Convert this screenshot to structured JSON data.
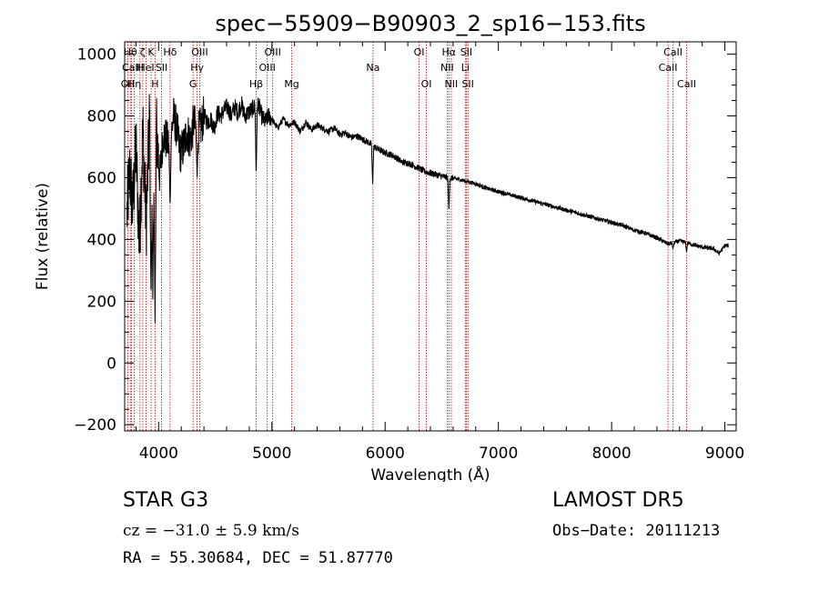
{
  "chart_data": {
    "type": "line",
    "title": "spec−55909−B90903_2_sp16−153.fits",
    "xlabel": "Wavelength (Å)",
    "ylabel": "Flux (relative)",
    "xlim": [
      3700,
      9100
    ],
    "ylim": [
      -220,
      1040
    ],
    "x_ticks": [
      4000,
      5000,
      6000,
      7000,
      8000,
      9000
    ],
    "y_ticks": [
      -200,
      0,
      200,
      400,
      600,
      800,
      1000
    ],
    "x_tick_labels": [
      "4000",
      "5000",
      "6000",
      "7000",
      "8000",
      "9000"
    ],
    "y_tick_labels": [
      "−200",
      "0",
      "200",
      "400",
      "600",
      "800",
      "1000"
    ],
    "grid": false,
    "color": "#000000",
    "series": [
      {
        "x": [
          3720,
          3745,
          3770,
          3800,
          3830,
          3860,
          3890,
          3920,
          3950,
          3980,
          4010,
          4040,
          4070,
          4100,
          4130,
          4160,
          4190,
          4220,
          4250,
          4280,
          4310,
          4340,
          4370,
          4400,
          4430,
          4460,
          4490,
          4520,
          4550,
          4580,
          4610,
          4640,
          4670,
          4700,
          4730,
          4760,
          4790,
          4820,
          4850,
          4880,
          4910,
          4940,
          4970,
          5000,
          5050,
          5100,
          5150,
          5200,
          5250,
          5300,
          5350,
          5400,
          5450,
          5500,
          5550,
          5600,
          5650,
          5700,
          5750,
          5800,
          5850,
          5900,
          5950,
          6000,
          6050,
          6100,
          6150,
          6200,
          6250,
          6300,
          6350,
          6400,
          6450,
          6500,
          6550,
          6600,
          6650,
          6700,
          6750,
          6800,
          6900,
          7000,
          7100,
          7200,
          7300,
          7400,
          7500,
          7600,
          7700,
          7800,
          7900,
          8000,
          8100,
          8200,
          8300,
          8400,
          8500,
          8600,
          8700,
          8800,
          8900,
          8950,
          9000,
          9030
        ],
        "y": [
          480,
          620,
          500,
          700,
          380,
          760,
          450,
          800,
          300,
          760,
          600,
          740,
          720,
          700,
          800,
          760,
          680,
          700,
          750,
          720,
          780,
          740,
          760,
          800,
          780,
          790,
          760,
          810,
          800,
          820,
          830,
          800,
          830,
          810,
          840,
          800,
          810,
          820,
          830,
          840,
          800,
          780,
          800,
          790,
          760,
          790,
          770,
          780,
          750,
          780,
          755,
          770,
          760,
          750,
          760,
          740,
          745,
          730,
          735,
          725,
          715,
          700,
          690,
          680,
          675,
          665,
          650,
          648,
          640,
          630,
          620,
          615,
          610,
          605,
          600,
          598,
          595,
          590,
          585,
          580,
          565,
          555,
          545,
          535,
          525,
          515,
          505,
          495,
          485,
          475,
          465,
          455,
          445,
          430,
          420,
          405,
          385,
          395,
          385,
          375,
          370,
          355,
          380,
          380
        ]
      }
    ],
    "dips": [
      {
        "x": 3933,
        "y": 200
      },
      {
        "x": 3968,
        "y": 130
      },
      {
        "x": 4101,
        "y": 500
      },
      {
        "x": 4340,
        "y": 600
      },
      {
        "x": 4861,
        "y": 600
      },
      {
        "x": 5890,
        "y": 580
      },
      {
        "x": 6563,
        "y": 490
      },
      {
        "x": 8542,
        "y": 370
      },
      {
        "x": 8662,
        "y": 360
      }
    ],
    "lines": [
      {
        "x": 3727,
        "label": "OII",
        "row": 2
      },
      {
        "x": 3750,
        "label": "Hθ",
        "row": 0
      },
      {
        "x": 3760,
        "label": "CaII",
        "row": 1
      },
      {
        "x": 3785,
        "label": "Hη",
        "row": 2
      },
      {
        "x": 3835,
        "label": "H",
        "row": 1
      },
      {
        "x": 3860,
        "label": "ζ",
        "row": 0
      },
      {
        "x": 3889,
        "label": "HeI",
        "row": 1
      },
      {
        "x": 3933,
        "label": "K",
        "row": 0
      },
      {
        "x": 3968,
        "label": "H",
        "row": 2
      },
      {
        "x": 4026,
        "label": "SII",
        "row": 1
      },
      {
        "x": 4101,
        "label": "Hδ",
        "row": 0
      },
      {
        "x": 4304,
        "label": "G",
        "row": 2
      },
      {
        "x": 4340,
        "label": "Hγ",
        "row": 1
      },
      {
        "x": 4363,
        "label": "OIII",
        "row": 0
      },
      {
        "x": 4861,
        "label": "Hβ",
        "row": 2
      },
      {
        "x": 4959,
        "label": "OIII",
        "row": 1
      },
      {
        "x": 5007,
        "label": "OIII",
        "row": 0
      },
      {
        "x": 5175,
        "label": "Mg",
        "row": 2
      },
      {
        "x": 5893,
        "label": "Na",
        "row": 1
      },
      {
        "x": 6300,
        "label": "OI",
        "row": 0
      },
      {
        "x": 6364,
        "label": "OI",
        "row": 2
      },
      {
        "x": 6548,
        "label": "NII",
        "row": 1
      },
      {
        "x": 6563,
        "label": "Hα",
        "row": 0
      },
      {
        "x": 6584,
        "label": "NII",
        "row": 2
      },
      {
        "x": 6708,
        "label": "Li",
        "row": 1
      },
      {
        "x": 6717,
        "label": "SII",
        "row": 0
      },
      {
        "x": 6731,
        "label": "SII",
        "row": 2
      },
      {
        "x": 8498,
        "label": "CaII",
        "row": 1
      },
      {
        "x": 8542,
        "label": "CaII",
        "row": 0
      },
      {
        "x": 8662,
        "label": "CaII",
        "row": 2
      }
    ]
  },
  "footer": {
    "class_label": "STAR    G3",
    "survey_label": "LAMOST DR5",
    "cz_label": "cz = −31.0 ± 5.9 km/s",
    "obs_date_label": "Obs−Date: 20111213",
    "radec_label": "RA =  55.30684, DEC =  51.87770"
  },
  "colors": {
    "spectrum": "#000000",
    "line_markers": "#cc0000"
  }
}
